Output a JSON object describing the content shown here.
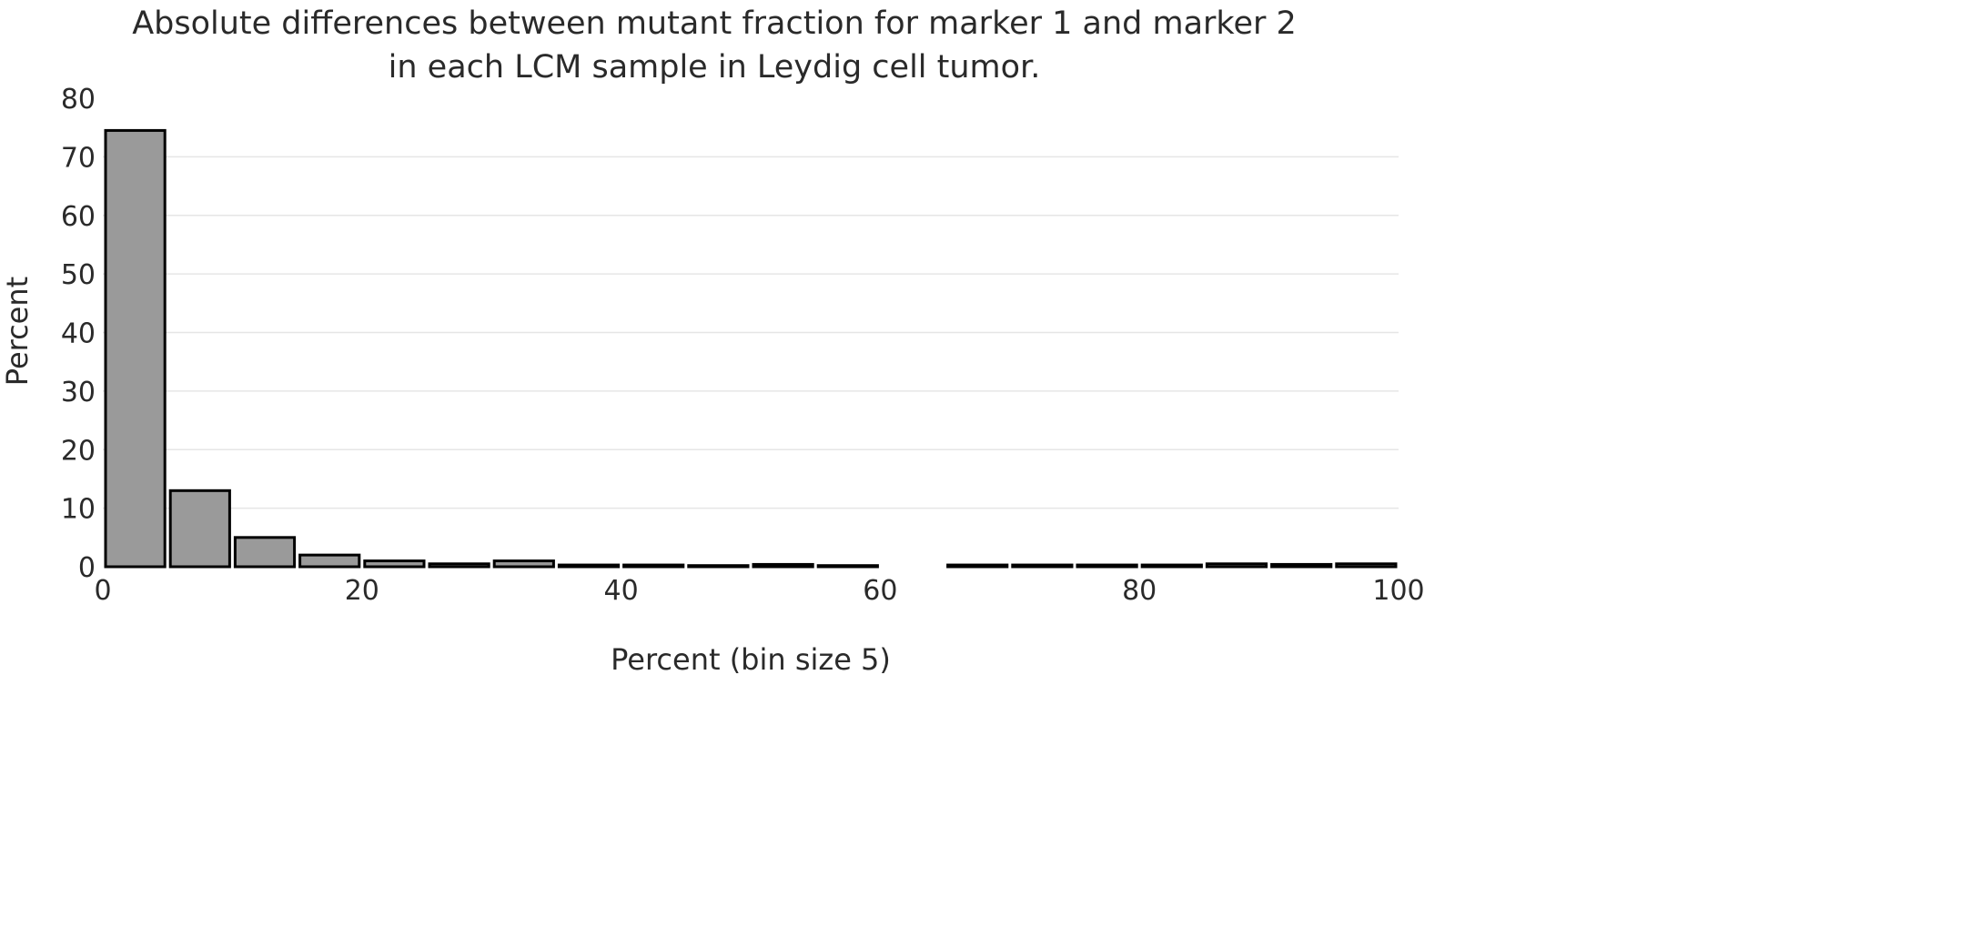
{
  "chart_data": {
    "type": "bar",
    "title": "Absolute differences between mutant fraction for marker 1 and marker 2",
    "subtitle": "in each LCM sample in Leydig cell tumor.",
    "xlabel": "Percent (bin size 5)",
    "ylabel": "Percent",
    "xlim": [
      0,
      100
    ],
    "ylim": [
      0,
      80
    ],
    "bin_size": 5,
    "x_ticks": [
      0,
      20,
      40,
      60,
      80,
      100
    ],
    "y_ticks": [
      0,
      10,
      20,
      30,
      40,
      50,
      60,
      70,
      80
    ],
    "grid": true,
    "legend": "none",
    "bins": [
      {
        "start": 0,
        "end": 5,
        "value": 74.5
      },
      {
        "start": 5,
        "end": 10,
        "value": 13
      },
      {
        "start": 10,
        "end": 15,
        "value": 5
      },
      {
        "start": 15,
        "end": 20,
        "value": 2
      },
      {
        "start": 20,
        "end": 25,
        "value": 1
      },
      {
        "start": 25,
        "end": 30,
        "value": 0.5
      },
      {
        "start": 30,
        "end": 35,
        "value": 1
      },
      {
        "start": 35,
        "end": 40,
        "value": 0.3
      },
      {
        "start": 40,
        "end": 45,
        "value": 0.3
      },
      {
        "start": 45,
        "end": 50,
        "value": 0.2
      },
      {
        "start": 50,
        "end": 55,
        "value": 0.4
      },
      {
        "start": 55,
        "end": 60,
        "value": 0.2
      },
      {
        "start": 60,
        "end": 65,
        "value": 0
      },
      {
        "start": 65,
        "end": 70,
        "value": 0.3
      },
      {
        "start": 70,
        "end": 75,
        "value": 0.3
      },
      {
        "start": 75,
        "end": 80,
        "value": 0.3
      },
      {
        "start": 80,
        "end": 85,
        "value": 0.3
      },
      {
        "start": 85,
        "end": 90,
        "value": 0.5
      },
      {
        "start": 90,
        "end": 95,
        "value": 0.4
      },
      {
        "start": 95,
        "end": 100,
        "value": 0.5
      }
    ],
    "colors": {
      "bar_fill": "#9a9a9a",
      "bar_stroke": "#000000",
      "grid": "#e6e6e6",
      "text": "#2a2a2a"
    }
  }
}
